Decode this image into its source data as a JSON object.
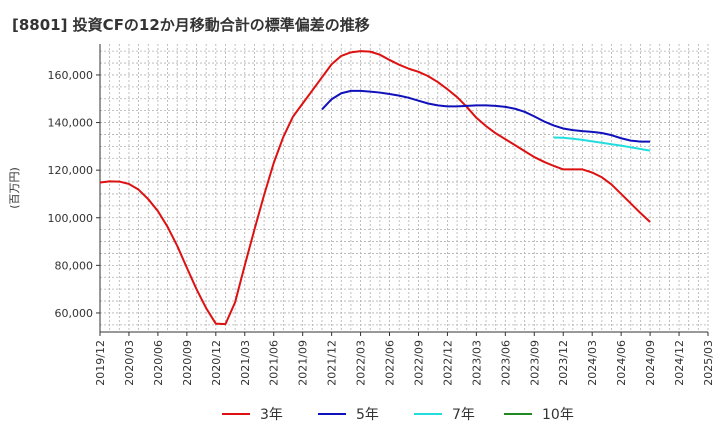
{
  "chart_data": {
    "type": "line",
    "title": "[8801]  投資CFの12か月移動合計の標準偏差の推移",
    "ylabel": "(百万円)",
    "xlabel": "",
    "ylim": [
      52000,
      173000
    ],
    "yticks": [
      60000,
      80000,
      100000,
      120000,
      140000,
      160000
    ],
    "ytick_labels": [
      "60,000",
      "80,000",
      "100,000",
      "120,000",
      "140,000",
      "160,000"
    ],
    "xtick_labels": [
      "2019/12",
      "2020/03",
      "2020/06",
      "2020/09",
      "2020/12",
      "2021/03",
      "2021/06",
      "2021/09",
      "2021/12",
      "2022/03",
      "2022/06",
      "2022/09",
      "2022/12",
      "2023/03",
      "2023/06",
      "2023/09",
      "2023/12",
      "2024/03",
      "2024/06",
      "2024/09",
      "2024/12",
      "2025/03"
    ],
    "xrange": [
      "2019/12",
      "2025/03"
    ],
    "grid": true,
    "legend_position": "bottom",
    "series": [
      {
        "name": "3年",
        "color": "#dd1111",
        "points": [
          [
            "2019/12",
            114800
          ],
          [
            "2020/01",
            115300
          ],
          [
            "2020/02",
            115200
          ],
          [
            "2020/03",
            114200
          ],
          [
            "2020/04",
            111800
          ],
          [
            "2020/05",
            107800
          ],
          [
            "2020/06",
            102800
          ],
          [
            "2020/07",
            96200
          ],
          [
            "2020/08",
            88200
          ],
          [
            "2020/09",
            79000
          ],
          [
            "2020/10",
            70000
          ],
          [
            "2020/11",
            62000
          ],
          [
            "2020/12",
            55500
          ],
          [
            "2021/01",
            55300
          ],
          [
            "2021/02",
            64500
          ],
          [
            "2021/03",
            80000
          ],
          [
            "2021/04",
            95000
          ],
          [
            "2021/05",
            109500
          ],
          [
            "2021/06",
            123000
          ],
          [
            "2021/07",
            134000
          ],
          [
            "2021/08",
            142500
          ],
          [
            "2021/09",
            148000
          ],
          [
            "2021/10",
            153500
          ],
          [
            "2021/11",
            159000
          ],
          [
            "2021/12",
            164500
          ],
          [
            "2022/01",
            168000
          ],
          [
            "2022/02",
            169500
          ],
          [
            "2022/03",
            170000
          ],
          [
            "2022/04",
            169800
          ],
          [
            "2022/05",
            168500
          ],
          [
            "2022/06",
            166300
          ],
          [
            "2022/07",
            164300
          ],
          [
            "2022/08",
            162600
          ],
          [
            "2022/09",
            161300
          ],
          [
            "2022/10",
            159500
          ],
          [
            "2022/11",
            157000
          ],
          [
            "2022/12",
            154000
          ],
          [
            "2023/01",
            150700
          ],
          [
            "2023/02",
            146600
          ],
          [
            "2023/03",
            142000
          ],
          [
            "2023/04",
            138500
          ],
          [
            "2023/05",
            135500
          ],
          [
            "2023/06",
            133000
          ],
          [
            "2023/07",
            130500
          ],
          [
            "2023/08",
            128000
          ],
          [
            "2023/09",
            125500
          ],
          [
            "2023/10",
            123500
          ],
          [
            "2023/11",
            121800
          ],
          [
            "2023/12",
            120300
          ],
          [
            "2024/01",
            120300
          ],
          [
            "2024/02",
            120300
          ],
          [
            "2024/03",
            119000
          ],
          [
            "2024/04",
            117000
          ],
          [
            "2024/05",
            114000
          ],
          [
            "2024/06",
            110000
          ],
          [
            "2024/07",
            106000
          ],
          [
            "2024/08",
            102000
          ],
          [
            "2024/09",
            98200
          ]
        ]
      },
      {
        "name": "5年",
        "color": "#1111bb",
        "points": [
          [
            "2021/11",
            145500
          ],
          [
            "2021/12",
            149800
          ],
          [
            "2022/01",
            152300
          ],
          [
            "2022/02",
            153300
          ],
          [
            "2022/03",
            153300
          ],
          [
            "2022/04",
            153000
          ],
          [
            "2022/05",
            152600
          ],
          [
            "2022/06",
            152000
          ],
          [
            "2022/07",
            151300
          ],
          [
            "2022/08",
            150400
          ],
          [
            "2022/09",
            149200
          ],
          [
            "2022/10",
            148000
          ],
          [
            "2022/11",
            147200
          ],
          [
            "2022/12",
            146800
          ],
          [
            "2023/01",
            146800
          ],
          [
            "2023/02",
            147000
          ],
          [
            "2023/03",
            147200
          ],
          [
            "2023/04",
            147200
          ],
          [
            "2023/05",
            147000
          ],
          [
            "2023/06",
            146600
          ],
          [
            "2023/07",
            145800
          ],
          [
            "2023/08",
            144500
          ],
          [
            "2023/09",
            142600
          ],
          [
            "2023/10",
            140500
          ],
          [
            "2023/11",
            138800
          ],
          [
            "2023/12",
            137500
          ],
          [
            "2024/01",
            136800
          ],
          [
            "2024/02",
            136400
          ],
          [
            "2024/03",
            136100
          ],
          [
            "2024/04",
            135600
          ],
          [
            "2024/05",
            134700
          ],
          [
            "2024/06",
            133400
          ],
          [
            "2024/07",
            132400
          ],
          [
            "2024/08",
            132000
          ],
          [
            "2024/09",
            132000
          ]
        ]
      },
      {
        "name": "7年",
        "color": "#22dddd",
        "points": [
          [
            "2023/11",
            133700
          ],
          [
            "2023/12",
            133600
          ],
          [
            "2024/01",
            133200
          ],
          [
            "2024/02",
            132700
          ],
          [
            "2024/03",
            132100
          ],
          [
            "2024/04",
            131500
          ],
          [
            "2024/05",
            130900
          ],
          [
            "2024/06",
            130300
          ],
          [
            "2024/07",
            129600
          ],
          [
            "2024/08",
            128900
          ],
          [
            "2024/09",
            128200
          ]
        ]
      },
      {
        "name": "10年",
        "color": "#228822",
        "points": []
      }
    ]
  }
}
